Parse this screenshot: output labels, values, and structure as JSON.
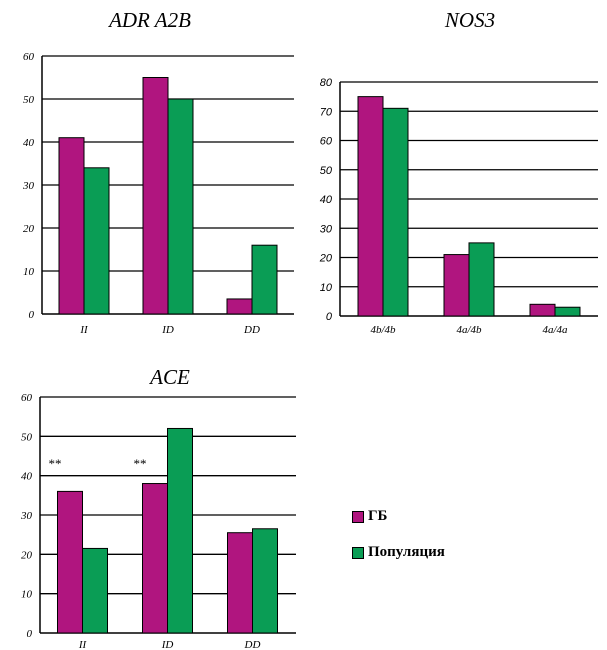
{
  "colors": {
    "gb": "#b0157f",
    "pop": "#0a9d55"
  },
  "legend": [
    {
      "label": "ГБ",
      "color": "#b0157f"
    },
    {
      "label": "Популяция",
      "color": "#0a9d55"
    }
  ],
  "chart_data": [
    {
      "type": "bar",
      "title": "ADR A2B",
      "categories": [
        "II",
        "ID",
        "DD"
      ],
      "ylim": [
        0,
        60
      ],
      "yticks": [
        0,
        10,
        20,
        30,
        40,
        50,
        60
      ],
      "grid": true,
      "series": [
        {
          "name": "ГБ",
          "values": [
            41,
            55,
            3.5
          ]
        },
        {
          "name": "Популяция",
          "values": [
            34,
            50,
            16
          ]
        }
      ]
    },
    {
      "type": "bar",
      "title": "NOS3",
      "categories": [
        "4b/4b",
        "4a/4b",
        "4a/4a"
      ],
      "ylim": [
        0,
        80
      ],
      "yticks": [
        0,
        10,
        20,
        30,
        40,
        50,
        60,
        70,
        80
      ],
      "grid": true,
      "series": [
        {
          "name": "ГБ",
          "values": [
            75,
            21,
            4
          ]
        },
        {
          "name": "Популяция",
          "values": [
            71,
            25,
            3
          ]
        }
      ]
    },
    {
      "type": "bar",
      "title": "ACE",
      "categories": [
        "II",
        "ID",
        "DD"
      ],
      "ylim": [
        0,
        60
      ],
      "yticks": [
        0,
        10,
        20,
        30,
        40,
        50,
        60
      ],
      "grid": true,
      "annotations": [
        "**",
        "**",
        ""
      ],
      "series": [
        {
          "name": "ГБ",
          "values": [
            36,
            38,
            25.5
          ]
        },
        {
          "name": "Популяция",
          "values": [
            21.5,
            52,
            26.5
          ]
        }
      ]
    }
  ]
}
